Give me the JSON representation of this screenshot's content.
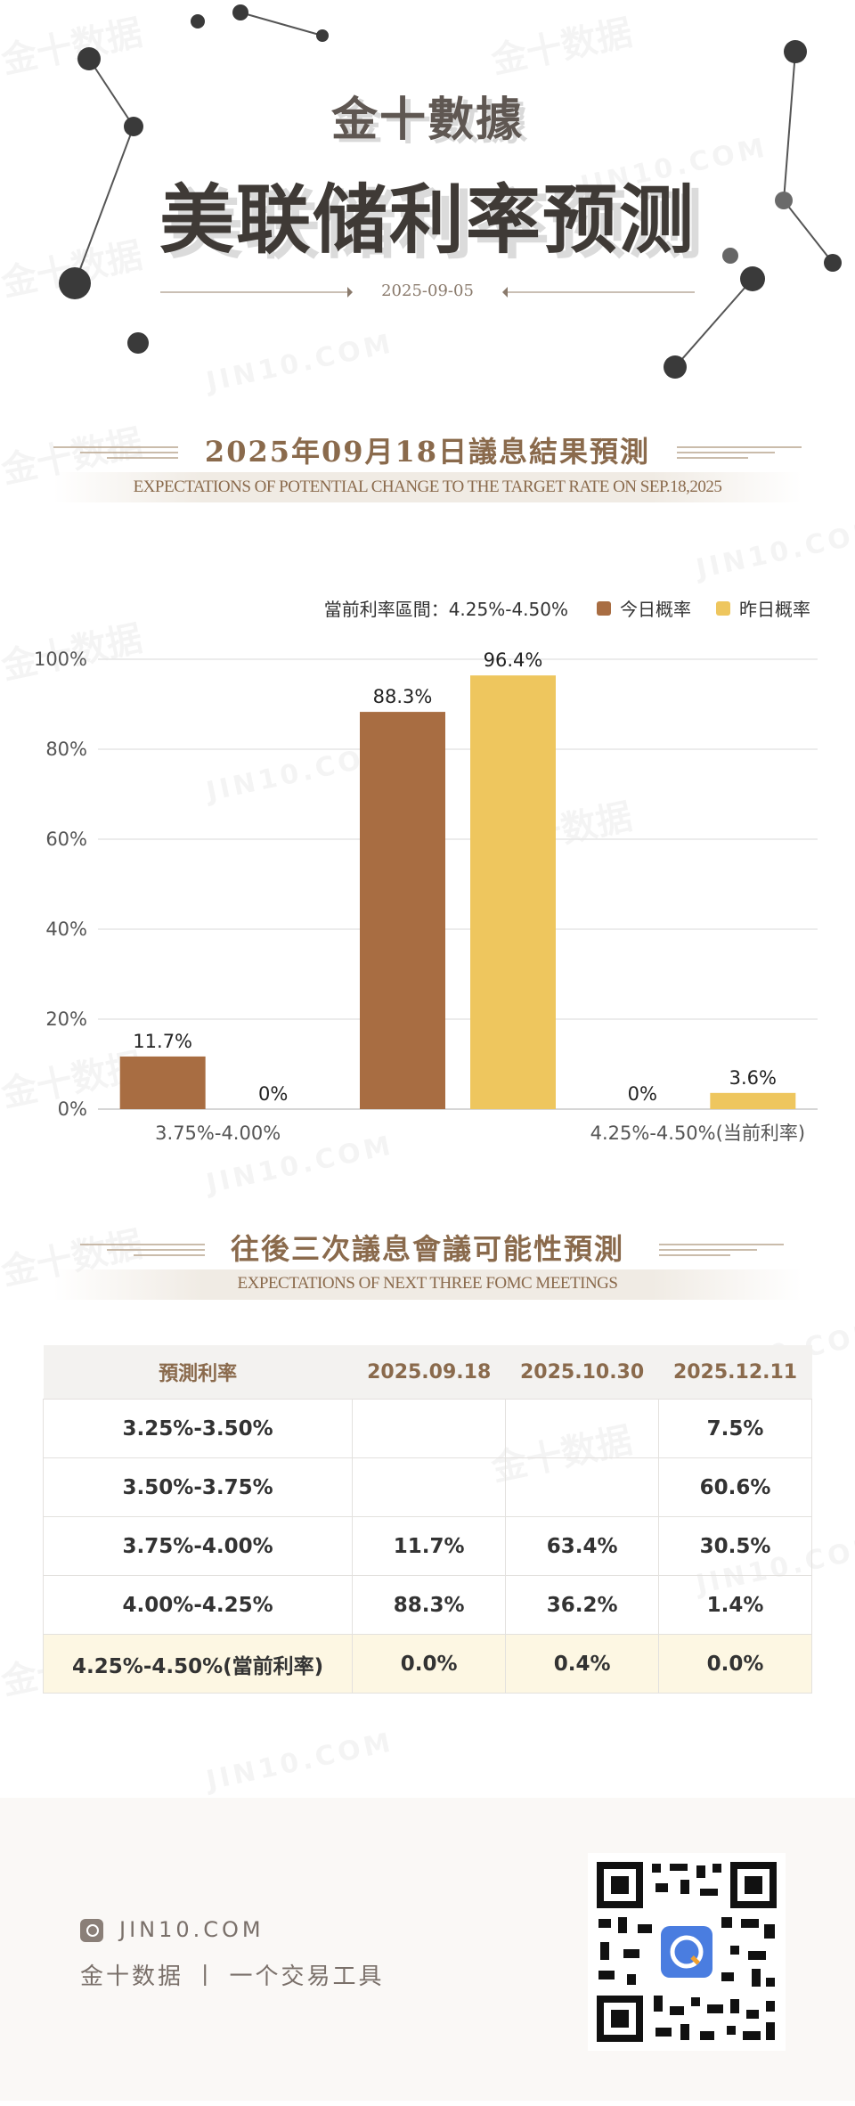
{
  "header": {
    "brand": "金十數據",
    "title": "美联储利率预测",
    "date": "2025-09-05"
  },
  "section1": {
    "title": "2025年09月18日議息結果預測",
    "subtitle": "EXPECTATIONS OF POTENTIAL CHANGE TO THE TARGET RATE ON SEP.18,2025"
  },
  "legend": {
    "current_range": "當前利率區間：4.25%-4.50%",
    "today": "今日概率",
    "yesterday": "昨日概率"
  },
  "colors": {
    "today": "#a86d42",
    "yesterday": "#eec65e"
  },
  "chart_data": {
    "type": "bar",
    "categories": [
      "3.75%-4.00%",
      "4.00%-4.25%",
      "4.25%-4.50%(当前利率)"
    ],
    "category_labels": [
      "3.75%-4.00%",
      "",
      "4.25%-4.50%(当前利率)"
    ],
    "series": [
      {
        "name": "今日概率",
        "values": [
          11.7,
          88.3,
          0
        ]
      },
      {
        "name": "昨日概率",
        "values": [
          0,
          96.4,
          3.6
        ]
      }
    ],
    "data_labels": [
      [
        "11.7%",
        "88.3%",
        "0%"
      ],
      [
        "0%",
        "96.4%",
        "3.6%"
      ]
    ],
    "yticks": [
      "0%",
      "20%",
      "40%",
      "60%",
      "80%",
      "100%"
    ],
    "ylim": [
      0,
      100
    ],
    "grid": true,
    "legend_position": "top-right"
  },
  "section2": {
    "title": "往後三次議息會議可能性預測",
    "subtitle": "EXPECTATIONS OF NEXT THREE FOMC MEETINGS"
  },
  "table": {
    "headers": [
      "預測利率",
      "2025.09.18",
      "2025.10.30",
      "2025.12.11"
    ],
    "rows": [
      [
        "3.25%-3.50%",
        "",
        "",
        "7.5%"
      ],
      [
        "3.50%-3.75%",
        "",
        "",
        "60.6%"
      ],
      [
        "3.75%-4.00%",
        "11.7%",
        "63.4%",
        "30.5%"
      ],
      [
        "4.00%-4.25%",
        "88.3%",
        "36.2%",
        "1.4%"
      ],
      [
        "4.25%-4.50%(當前利率)",
        "0.0%",
        "0.4%",
        "0.0%"
      ]
    ]
  },
  "footer": {
    "site": "JIN10.COM",
    "tagline": "金十数据 丨 一个交易工具"
  },
  "watermark": {
    "cn": "金十数据",
    "en": "JIN10.COM"
  }
}
